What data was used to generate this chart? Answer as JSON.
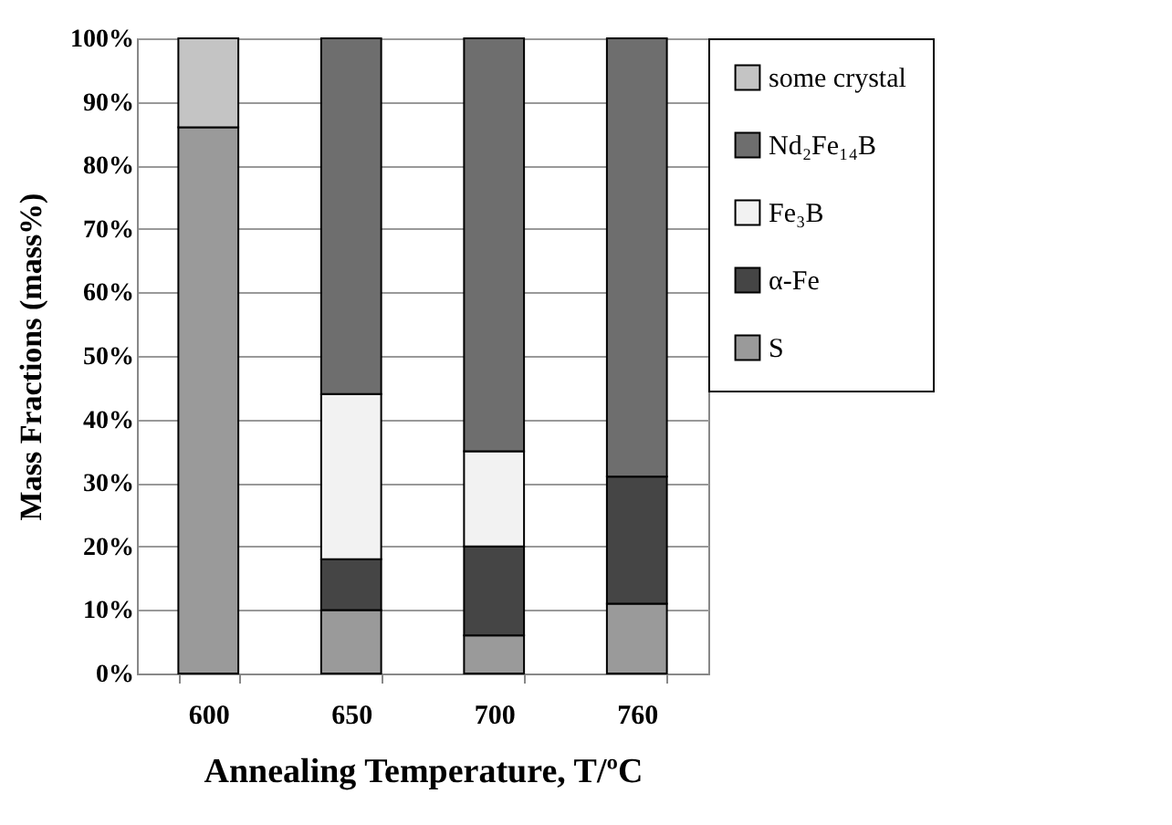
{
  "chart_data": {
    "type": "bar",
    "stacked": true,
    "xlabel": "Annealing Temperature, T/ºC",
    "ylabel": "Mass Fractions (mass%)",
    "categories": [
      "600",
      "650",
      "700",
      "760"
    ],
    "series": [
      {
        "name": "S",
        "color": "#9a9a9a",
        "values": [
          86,
          10,
          6,
          11
        ]
      },
      {
        "name": "α-Fe",
        "color": "#454545",
        "values": [
          null,
          8,
          14,
          20
        ]
      },
      {
        "name": "Fe₃B",
        "color": "#f2f2f2",
        "values": [
          null,
          26,
          15,
          null
        ]
      },
      {
        "name": "Nd₂Fe₁₄B",
        "color": "#6e6e6e",
        "values": [
          null,
          56,
          65,
          69
        ]
      },
      {
        "name": "some crystal",
        "color": "#c4c4c4",
        "values": [
          14,
          null,
          null,
          null
        ]
      }
    ],
    "ylim": [
      0,
      100
    ],
    "yticks": [
      {
        "value": 0,
        "label": "0%"
      },
      {
        "value": 10,
        "label": "10%"
      },
      {
        "value": 20,
        "label": "20%"
      },
      {
        "value": 30,
        "label": "30%"
      },
      {
        "value": 40,
        "label": "40%"
      },
      {
        "value": 50,
        "label": "50%"
      },
      {
        "value": 60,
        "label": "60%"
      },
      {
        "value": 70,
        "label": "70%"
      },
      {
        "value": 80,
        "label": "80%"
      },
      {
        "value": 90,
        "label": "90%"
      },
      {
        "value": 100,
        "label": "100%"
      }
    ],
    "grid": "y",
    "legend": "right"
  }
}
